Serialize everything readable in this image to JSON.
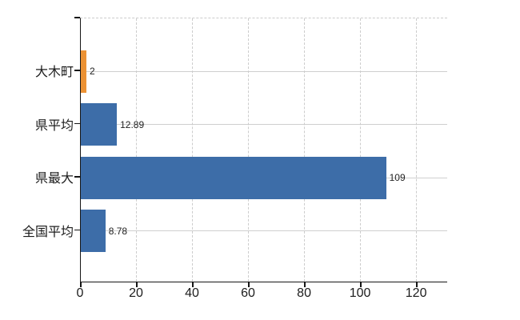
{
  "chart_data": {
    "type": "bar",
    "orientation": "horizontal",
    "title": "",
    "xlabel": "",
    "ylabel": "",
    "legend": "none",
    "categories": [
      "大木町",
      "県平均",
      "県最大",
      "全国平均"
    ],
    "values": [
      2,
      12.89,
      109,
      8.78
    ],
    "value_labels": [
      "2",
      "12.89",
      "109",
      "8.78"
    ],
    "bar_colors": [
      "#ec9234",
      "#3d6da8",
      "#3d6da8",
      "#3d6da8"
    ],
    "x_tick_values": [
      0,
      20,
      40,
      60,
      80,
      100,
      120
    ],
    "x_tick_labels": [
      "0",
      "20",
      "40",
      "60",
      "80",
      "100",
      "120"
    ],
    "xlim": [
      0,
      131.1
    ],
    "grid": {
      "vertical": "dashed",
      "horizontal_category_lines": "solid",
      "top_border": "dashed"
    },
    "colors": {
      "bar_blue": "#3d6da8",
      "bar_orange": "#ec9234",
      "gridline": "#cccccc",
      "axis": "#161616",
      "text": "#1c1c1c"
    }
  }
}
